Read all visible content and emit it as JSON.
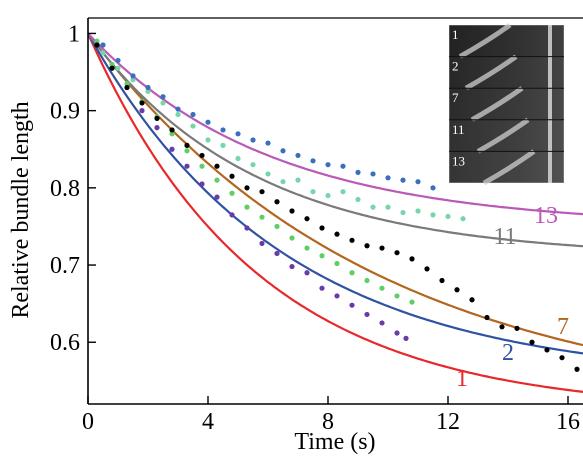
{
  "chart_data": {
    "type": "scatter",
    "xlabel": "Time (s)",
    "ylabel": "Relative bundle length",
    "xlim": [
      0,
      16.5
    ],
    "ylim": [
      0.52,
      1.02
    ],
    "xticks": [
      0,
      4,
      8,
      12,
      16
    ],
    "xtick_labels": [
      "0",
      "4",
      "8",
      "12",
      "16"
    ],
    "yticks": [
      0.6,
      0.7,
      0.8,
      0.9,
      1.0
    ],
    "ytick_labels": [
      "0.6",
      "0.7",
      "0.8",
      "0.9",
      "1"
    ],
    "grid": false,
    "series": [
      {
        "label": "1",
        "line_color": "#e8282b",
        "dot_color": "#6a3aa6",
        "fit": {
          "a": 0.51,
          "b": 0.49,
          "tau": 5.6
        },
        "x": [
          0.3,
          0.8,
          1.3,
          1.8,
          2.3,
          2.8,
          3.3,
          3.8,
          4.3,
          4.8,
          5.3,
          5.8,
          6.3,
          6.8,
          7.3,
          7.8,
          8.3,
          8.8,
          9.3,
          9.8,
          10.3,
          10.6
        ],
        "y": [
          0.985,
          0.955,
          0.93,
          0.9,
          0.878,
          0.85,
          0.828,
          0.805,
          0.788,
          0.765,
          0.748,
          0.728,
          0.715,
          0.698,
          0.69,
          0.67,
          0.66,
          0.648,
          0.636,
          0.625,
          0.612,
          0.605
        ]
      },
      {
        "label": "2",
        "line_color": "#2f52a3",
        "dot_color": "#5fce64",
        "fit": {
          "a": 0.55,
          "b": 0.45,
          "tau": 6.5
        },
        "x": [
          0.3,
          0.8,
          1.3,
          1.8,
          2.3,
          2.8,
          3.3,
          3.8,
          4.3,
          4.8,
          5.3,
          5.8,
          6.3,
          6.8,
          7.3,
          7.8,
          8.3,
          8.8,
          9.3,
          9.8,
          10.3,
          10.8
        ],
        "y": [
          0.99,
          0.96,
          0.935,
          0.912,
          0.892,
          0.87,
          0.848,
          0.828,
          0.81,
          0.793,
          0.775,
          0.762,
          0.75,
          0.735,
          0.722,
          0.712,
          0.702,
          0.69,
          0.68,
          0.67,
          0.66,
          0.652
        ]
      },
      {
        "label": "7",
        "line_color": "#b4651e",
        "dot_color": "#000000",
        "fit": {
          "a": 0.51,
          "b": 0.49,
          "tau": 9.5
        },
        "x": [
          0.3,
          0.8,
          1.3,
          1.8,
          2.3,
          2.8,
          3.3,
          3.8,
          4.3,
          4.8,
          5.3,
          5.8,
          6.3,
          6.8,
          7.3,
          7.8,
          8.3,
          8.8,
          9.3,
          9.8,
          10.3,
          10.8,
          11.3,
          11.8,
          12.3,
          12.8,
          13.3,
          13.8,
          14.3,
          14.8,
          15.3,
          15.8,
          16.3
        ],
        "y": [
          0.985,
          0.955,
          0.93,
          0.91,
          0.89,
          0.875,
          0.855,
          0.842,
          0.828,
          0.815,
          0.8,
          0.795,
          0.782,
          0.77,
          0.76,
          0.748,
          0.74,
          0.732,
          0.725,
          0.722,
          0.716,
          0.708,
          0.695,
          0.68,
          0.668,
          0.655,
          0.632,
          0.62,
          0.618,
          0.6,
          0.59,
          0.58,
          0.565
        ]
      },
      {
        "label": "11",
        "line_color": "#7a7a7a",
        "dot_color": "#75d6a9",
        "fit": {
          "a": 0.71,
          "b": 0.29,
          "tau": 5.5
        },
        "x": [
          0.5,
          1.0,
          1.5,
          2.0,
          2.5,
          3.0,
          3.5,
          4.0,
          4.5,
          5.0,
          5.5,
          6.0,
          6.5,
          7.0,
          7.5,
          8.0,
          8.5,
          9.0,
          9.5,
          10.0,
          10.5,
          11.0,
          11.5,
          12.0,
          12.5
        ],
        "y": [
          0.975,
          0.955,
          0.94,
          0.925,
          0.91,
          0.895,
          0.88,
          0.862,
          0.855,
          0.838,
          0.83,
          0.818,
          0.808,
          0.81,
          0.795,
          0.79,
          0.795,
          0.785,
          0.775,
          0.775,
          0.768,
          0.77,
          0.765,
          0.763,
          0.76
        ]
      },
      {
        "label": "13",
        "line_color": "#b95ab8",
        "dot_color": "#3a6fc0",
        "fit": {
          "a": 0.75,
          "b": 0.25,
          "tau": 6.0
        },
        "x": [
          0.5,
          1.0,
          1.5,
          2.0,
          2.5,
          3.0,
          3.5,
          4.0,
          4.5,
          5.0,
          5.5,
          6.0,
          6.5,
          7.0,
          7.5,
          8.0,
          8.5,
          9.0,
          9.5,
          10.0,
          10.5,
          11.0,
          11.5
        ],
        "y": [
          0.985,
          0.965,
          0.945,
          0.93,
          0.918,
          0.902,
          0.895,
          0.885,
          0.875,
          0.87,
          0.862,
          0.858,
          0.848,
          0.842,
          0.835,
          0.83,
          0.828,
          0.82,
          0.818,
          0.813,
          0.81,
          0.808,
          0.8
        ]
      }
    ],
    "inset": {
      "frame_labels": [
        "1",
        "2",
        "7",
        "11",
        "13"
      ]
    }
  }
}
